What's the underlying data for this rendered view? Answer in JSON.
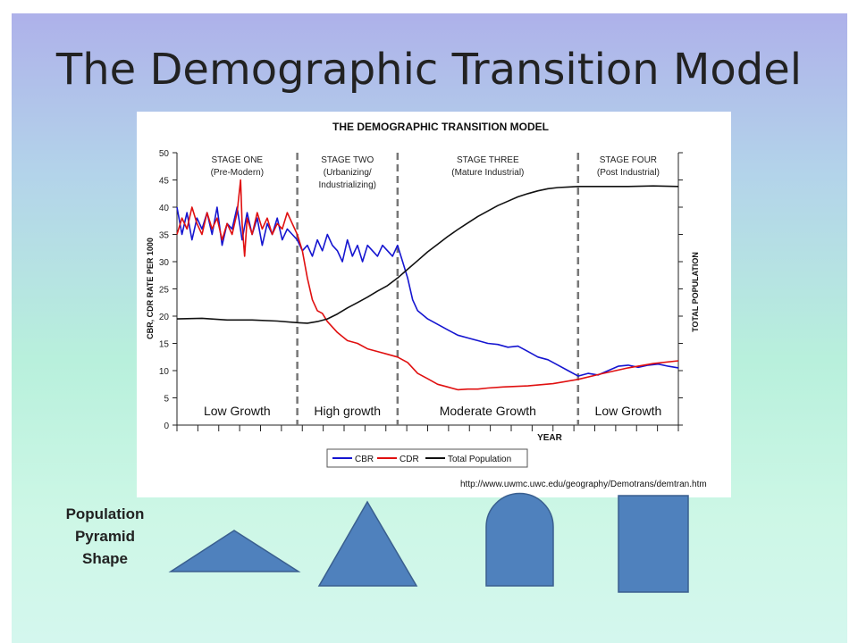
{
  "slide": {
    "title": "The Demographic Transition Model",
    "source_url": "http://www.uwmc.uwc.edu/geography/Demotrans/demtran.htm",
    "pyramid_label": [
      "Population",
      "Pyramid",
      "Shape"
    ],
    "shape_color": "#4f81bd",
    "shapes": [
      "wide-triangle-icon",
      "triangle-icon",
      "bullet-shape-icon",
      "rectangle-icon"
    ]
  },
  "chart_data": {
    "type": "line",
    "title": "THE DEMOGRAPHIC TRANSITION MODEL",
    "xlabel": "YEAR",
    "ylabel": "CBR, CDR RATE PER 1000",
    "ylabel_right": "TOTAL POPULATION",
    "ylim": [
      0,
      50
    ],
    "y_ticks": [
      "0",
      "5",
      "10",
      "15",
      "20",
      "25",
      "30",
      "35",
      "40",
      "45",
      "50"
    ],
    "xlim": [
      0,
      100
    ],
    "stage_dividers": [
      24,
      44,
      80
    ],
    "stages": [
      {
        "name": "STAGE ONE",
        "subtitle": "(Pre-Modern)",
        "growth": "Low Growth"
      },
      {
        "name": "STAGE TWO",
        "subtitle": "(Urbanizing/ Industrializing)",
        "growth": "High growth"
      },
      {
        "name": "STAGE THREE",
        "subtitle": "(Mature Industrial)",
        "growth": "Moderate Growth"
      },
      {
        "name": "STAGE FOUR",
        "subtitle": "(Post Industrial)",
        "growth": "Low Growth"
      }
    ],
    "legend": [
      "CBR",
      "CDR",
      "Total Population"
    ],
    "series": [
      {
        "name": "CBR",
        "color": "#1515d0",
        "x": [
          0,
          1,
          2,
          3,
          4,
          5,
          6,
          7,
          8,
          9,
          10,
          11,
          12,
          13,
          14,
          15,
          16,
          17,
          18,
          19,
          20,
          21,
          22,
          23,
          24,
          25,
          26,
          27,
          28,
          29,
          30,
          31,
          32,
          33,
          34,
          35,
          36,
          37,
          38,
          39,
          40,
          41,
          42,
          43,
          44,
          45,
          46,
          47,
          48,
          50,
          52,
          54,
          56,
          58,
          60,
          62,
          64,
          66,
          68,
          70,
          72,
          74,
          76,
          78,
          80,
          82,
          84,
          86,
          88,
          90,
          92,
          94,
          96,
          98,
          100
        ],
        "values": [
          40,
          35,
          39,
          34,
          38,
          36,
          39,
          35,
          40,
          33,
          37,
          36,
          40,
          34,
          39,
          35,
          38,
          33,
          37,
          35,
          38,
          34,
          36,
          35,
          34,
          32,
          33,
          31,
          34,
          32,
          35,
          33,
          32,
          30,
          34,
          31,
          33,
          30,
          33,
          32,
          31,
          33,
          32,
          31,
          33,
          30,
          27,
          23,
          21,
          19.5,
          18.5,
          17.5,
          16.5,
          16,
          15.5,
          15,
          14.8,
          14.3,
          14.5,
          13.5,
          12.5,
          12,
          11,
          10,
          9,
          9.5,
          9.2,
          10,
          10.8,
          11,
          10.6,
          11,
          11.2,
          10.8,
          10.5
        ]
      },
      {
        "name": "CDR",
        "color": "#e01010",
        "x": [
          0,
          1,
          2,
          3,
          4,
          5,
          6,
          7,
          8,
          9,
          10,
          11,
          12,
          12.7,
          13,
          13.5,
          14,
          15,
          16,
          17,
          18,
          19,
          20,
          21,
          22,
          23,
          24,
          25,
          26,
          27,
          28,
          29,
          30,
          32,
          34,
          36,
          38,
          40,
          42,
          44,
          46,
          48,
          50,
          52,
          54,
          56,
          58,
          60,
          62,
          65,
          70,
          75,
          80,
          85,
          90,
          95,
          100
        ],
        "values": [
          35,
          38,
          36,
          40,
          37,
          35,
          39,
          36,
          38,
          34,
          37,
          35,
          39,
          45,
          37,
          31,
          38,
          35,
          39,
          36,
          38,
          35,
          37,
          36,
          39,
          37,
          35,
          32,
          27,
          23,
          21,
          20.5,
          19,
          17,
          15.5,
          15,
          14,
          13.5,
          13,
          12.5,
          11.5,
          9.5,
          8.5,
          7.5,
          7,
          6.5,
          6.6,
          6.6,
          6.8,
          7,
          7.2,
          7.6,
          8.4,
          9.5,
          10.5,
          11.3,
          11.8
        ]
      },
      {
        "name": "Total Population",
        "color": "#111111",
        "x": [
          0,
          5,
          10,
          15,
          20,
          24,
          26,
          28,
          30,
          32,
          34,
          36,
          38,
          40,
          42,
          44,
          46,
          48,
          50,
          52,
          54,
          56,
          58,
          60,
          62,
          64,
          66,
          68,
          70,
          72,
          74,
          76,
          78,
          80,
          85,
          90,
          95,
          100
        ],
        "values": [
          19.5,
          19.6,
          19.3,
          19.3,
          19.1,
          18.8,
          18.7,
          19,
          19.5,
          20.4,
          21.5,
          22.5,
          23.5,
          24.6,
          25.6,
          27,
          28.6,
          30.2,
          31.8,
          33.2,
          34.6,
          35.9,
          37.1,
          38.3,
          39.3,
          40.3,
          41.1,
          41.9,
          42.5,
          43,
          43.4,
          43.6,
          43.7,
          43.8,
          43.8,
          43.8,
          43.9,
          43.8
        ]
      }
    ]
  }
}
